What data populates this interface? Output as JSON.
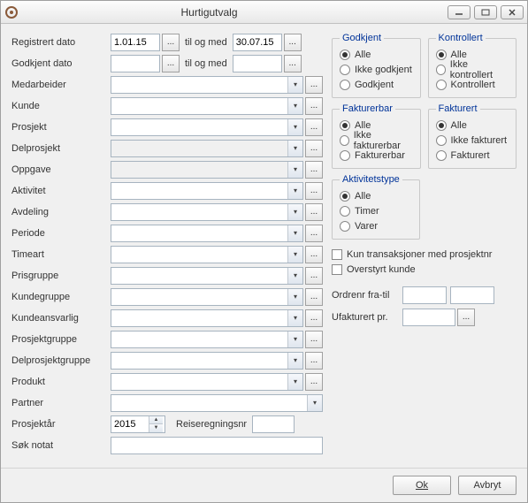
{
  "window": {
    "title": "Hurtigutvalg"
  },
  "left": {
    "registrert_label": "Registrert dato",
    "registrert_from": "1.01.15",
    "registrert_mid": "til og med",
    "registrert_to": "30.07.15",
    "godkjent_label": "Godkjent dato",
    "godkjent_from": "",
    "godkjent_mid": "til og med",
    "godkjent_to": "",
    "rows": [
      {
        "label": "Medarbeider",
        "name": "medarbeider",
        "value": "",
        "lookup": true
      },
      {
        "label": "Kunde",
        "name": "kunde",
        "value": "",
        "lookup": true
      },
      {
        "label": "Prosjekt",
        "name": "prosjekt",
        "value": "",
        "lookup": true
      },
      {
        "label": "Delprosjekt",
        "name": "delprosjekt",
        "value": "",
        "lookup": true,
        "disabled": true
      },
      {
        "label": "Oppgave",
        "name": "oppgave",
        "value": "",
        "lookup": true,
        "disabled": true
      },
      {
        "label": "Aktivitet",
        "name": "aktivitet",
        "value": "",
        "lookup": true
      },
      {
        "label": "Avdeling",
        "name": "avdeling",
        "value": "",
        "lookup": true
      },
      {
        "label": "Periode",
        "name": "periode",
        "value": "",
        "lookup": true
      },
      {
        "label": "Timeart",
        "name": "timeart",
        "value": "",
        "lookup": true
      },
      {
        "label": "Prisgruppe",
        "name": "prisgruppe",
        "value": "",
        "lookup": true
      },
      {
        "label": "Kundegruppe",
        "name": "kundegruppe",
        "value": "",
        "lookup": true
      },
      {
        "label": "Kundeansvarlig",
        "name": "kundeansvarlig",
        "value": "",
        "lookup": true
      },
      {
        "label": "Prosjektgruppe",
        "name": "prosjektgruppe",
        "value": "",
        "lookup": true
      },
      {
        "label": "Delprosjektgruppe",
        "name": "delprosjektgruppe",
        "value": "",
        "lookup": true
      },
      {
        "label": "Produkt",
        "name": "produkt",
        "value": "",
        "lookup": true
      },
      {
        "label": "Partner",
        "name": "partner",
        "value": "",
        "lookup": false
      }
    ],
    "prosjektaar_label": "Prosjektår",
    "prosjektaar_value": "2015",
    "reiseregningsnr_label": "Reiseregningsnr",
    "reiseregningsnr_value": "",
    "sok_notat_label": "Søk notat",
    "sok_notat_value": ""
  },
  "right": {
    "godkjent": {
      "legend": "Godkjent",
      "opts": [
        "Alle",
        "Ikke godkjent",
        "Godkjent"
      ],
      "selected": 0
    },
    "kontrollert": {
      "legend": "Kontrollert",
      "opts": [
        "Alle",
        "Ikke kontrollert",
        "Kontrollert"
      ],
      "selected": 0
    },
    "fakturerbar": {
      "legend": "Fakturerbar",
      "opts": [
        "Alle",
        "Ikke fakturerbar",
        "Fakturerbar"
      ],
      "selected": 0
    },
    "fakturert": {
      "legend": "Fakturert",
      "opts": [
        "Alle",
        "Ikke fakturert",
        "Fakturert"
      ],
      "selected": 0
    },
    "aktivitetstype": {
      "legend": "Aktivitetstype",
      "opts": [
        "Alle",
        "Timer",
        "Varer"
      ],
      "selected": 0
    },
    "check1_label": "Kun transaksjoner med prosjektnr",
    "check1_checked": false,
    "check2_label": "Overstyrt kunde",
    "check2_checked": false,
    "ordrenr_label": "Ordrenr fra-til",
    "ordrenr_from": "",
    "ordrenr_to": "",
    "ufakturert_label": "Ufakturert pr.",
    "ufakturert_value": ""
  },
  "footer": {
    "ok_label": "Ok",
    "cancel_label": "Avbryt"
  },
  "ellipsis": "..."
}
